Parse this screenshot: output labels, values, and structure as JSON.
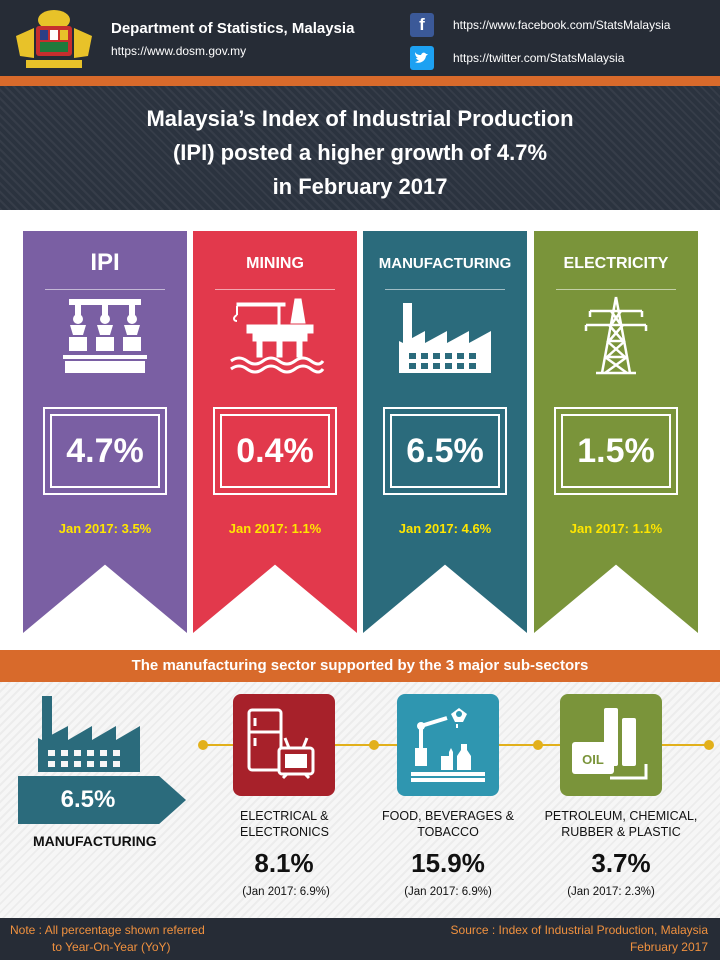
{
  "header": {
    "department": "Department of Statistics, Malaysia",
    "website": "https://www.dosm.gov.my",
    "facebook_url": "https://www.facebook.com/StatsMalaysia",
    "twitter_url": "https://twitter.com/StatsMalaysia",
    "facebook_icon": "f",
    "twitter_icon": "twitter-bird",
    "crest_icon": "malaysia-coat-of-arms"
  },
  "title": {
    "line1": "Malaysia’s Index of Industrial Production",
    "line2": "(IPI) posted a higher growth of 4.7%",
    "line3": "in February 2017"
  },
  "cards": [
    {
      "label": "IPI",
      "value": "4.7%",
      "previous": "Jan 2017: 3.5%",
      "color": "#7a5fa3",
      "icon": "robotic-arms-icon"
    },
    {
      "label": "MINING",
      "value": "0.4%",
      "previous": "Jan 2017: 1.1%",
      "color": "#e2394c",
      "icon": "oil-rig-icon"
    },
    {
      "label": "MANUFACTURING",
      "value": "6.5%",
      "previous": "Jan 2017: 4.6%",
      "color": "#2b6b7c",
      "icon": "factory-icon"
    },
    {
      "label": "ELECTRICITY",
      "value": "1.5%",
      "previous": "Jan 2017: 1.1%",
      "color": "#7a943a",
      "icon": "power-tower-icon"
    }
  ],
  "subsector": {
    "header": "The manufacturing sector supported by the 3 major sub-sectors",
    "manufacturing_value": "6.5%",
    "manufacturing_label": "MANUFACTURING",
    "items": [
      {
        "name_line1": "ELECTRICAL &",
        "name_line2": "ELECTRONICS",
        "value": "8.1%",
        "previous": "(Jan 2017: 6.9%)",
        "color": "#a7212a",
        "icon": "appliances-icon"
      },
      {
        "name_line1": "FOOD, BEVERAGES &",
        "name_line2": "TOBACCO",
        "value": "15.9%",
        "previous": "(Jan 2017: 6.9%)",
        "color": "#2f96b0",
        "icon": "bottling-machine-icon"
      },
      {
        "name_line1": "PETROLEUM, CHEMICAL,",
        "name_line2": "RUBBER & PLASTIC",
        "value": "3.7%",
        "previous": "(Jan 2017: 2.3%)",
        "color": "#7a943a",
        "icon": "oil-tank-icon",
        "oil_label": "OIL"
      }
    ]
  },
  "footer": {
    "note_line1": "Note : All percentage shown referred",
    "note_line2": "to Year-On-Year (YoY)",
    "source_line1": "Source : Index of Industrial Production, Malaysia",
    "source_line2": "February 2017"
  }
}
